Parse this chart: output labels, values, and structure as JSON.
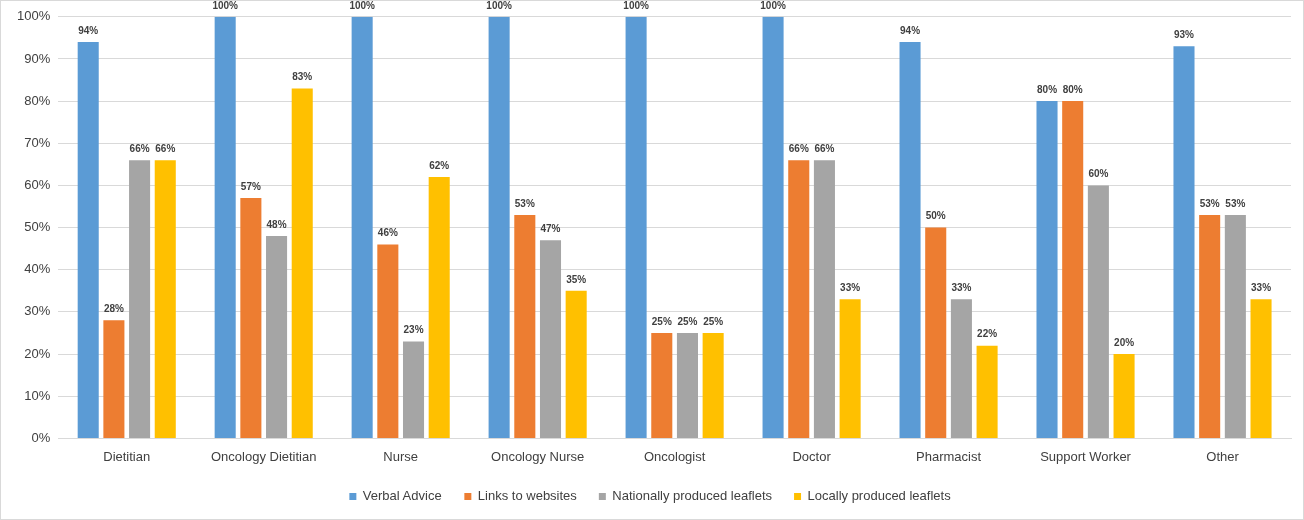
{
  "chart_data": {
    "type": "bar",
    "categories": [
      "Dietitian",
      "Oncology Dietitian",
      "Nurse",
      "Oncology Nurse",
      "Oncologist",
      "Doctor",
      "Pharmacist",
      "Support Worker",
      "Other"
    ],
    "series": [
      {
        "name": "Verbal Advice",
        "color": "#5b9bd5",
        "values": [
          94,
          100,
          100,
          100,
          100,
          100,
          94,
          80,
          93
        ],
        "value_labels": [
          "94%",
          "100%",
          "100%",
          "100%",
          "100%",
          "100%",
          "94%",
          "80%",
          "93%"
        ]
      },
      {
        "name": "Links to websites",
        "color": "#ed7d31",
        "values": [
          28,
          57,
          46,
          53,
          25,
          66,
          50,
          80,
          53
        ],
        "value_labels": [
          "28%",
          "57%",
          "46%",
          "53%",
          "25%",
          "66%",
          "50%",
          "80%",
          "53%"
        ]
      },
      {
        "name": "Nationally produced leaflets",
        "color": "#a5a5a5",
        "values": [
          66,
          48,
          23,
          47,
          25,
          66,
          33,
          60,
          53
        ],
        "value_labels": [
          "66%",
          "48%",
          "23%",
          "47%",
          "25%",
          "66%",
          "33%",
          "60%",
          "53%"
        ]
      },
      {
        "name": "Locally produced leaflets",
        "color": "#ffc000",
        "values": [
          66,
          83,
          62,
          35,
          25,
          33,
          22,
          20,
          33
        ],
        "value_labels": [
          "66%",
          "83%",
          "62%",
          "35%",
          "25%",
          "33%",
          "22%",
          "20%",
          "33%"
        ]
      }
    ],
    "ylim": [
      0,
      100
    ],
    "yticks": [
      {
        "value": 0,
        "label": "0%"
      },
      {
        "value": 10,
        "label": "10%"
      },
      {
        "value": 20,
        "label": "20%"
      },
      {
        "value": 30,
        "label": "30%"
      },
      {
        "value": 40,
        "label": "40%"
      },
      {
        "value": 50,
        "label": "50%"
      },
      {
        "value": 60,
        "label": "60%"
      },
      {
        "value": 70,
        "label": "70%"
      },
      {
        "value": 80,
        "label": "80%"
      },
      {
        "value": 90,
        "label": "90%"
      },
      {
        "value": 100,
        "label": "100%"
      }
    ],
    "grid": "y",
    "legend": "bottom"
  }
}
